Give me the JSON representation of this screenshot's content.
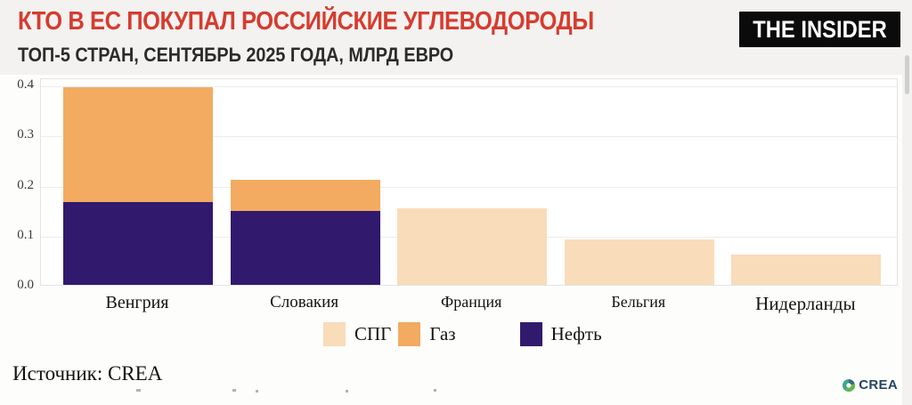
{
  "header": {
    "title": "КТО В ЕС ПОКУПАЛ РОССИЙСКИЕ УГЛЕВОДОРОДЫ",
    "subtitle": "ТОП-5 СТРАН, СЕНТЯБРЬ 2025 ГОДА, МЛРД ЕВРО",
    "logo_text": "THE INSIDER"
  },
  "chart_data": {
    "type": "bar",
    "stacked": true,
    "title": "КТО В ЕС ПОКУПАЛ РОССИЙСКИЕ УГЛЕВОДОРОДЫ",
    "subtitle": "ТОП-5 СТРАН, СЕНТЯБРЬ 2025 ГОДА, МЛРД ЕВРО",
    "unit": "млрд евро",
    "categories": [
      "Венгрия",
      "Словакия",
      "Франция",
      "Бельгия",
      "Нидерланды"
    ],
    "series": [
      {
        "name": "СПГ",
        "color": "#f9dcba",
        "values": [
          0,
          0,
          0.153,
          0.09,
          0.06
        ]
      },
      {
        "name": "Газ",
        "color": "#f2ab61",
        "values": [
          0.23,
          0.062,
          0,
          0,
          0
        ]
      },
      {
        "name": "Нефть",
        "color": "#31196d",
        "values": [
          0.165,
          0.148,
          0,
          0,
          0
        ]
      }
    ],
    "stack_order": [
      "Нефть",
      "Газ",
      "СПГ"
    ],
    "yticks": [
      0.0,
      0.1,
      0.2,
      0.3,
      0.4
    ],
    "ylim": [
      0,
      0.42
    ],
    "grid": true,
    "legend_position": "bottom"
  },
  "footer": {
    "source": "Источник: CREA",
    "crea_logo_text": "CREA"
  },
  "colors": {
    "title_red": "#d63c2f",
    "subtitle_dark": "#2b2b2b",
    "logo_bg": "#0b0b0b",
    "lng": "#f9dcba",
    "gas": "#f2ab61",
    "oil": "#31196d",
    "crea_navy": "#274461"
  }
}
